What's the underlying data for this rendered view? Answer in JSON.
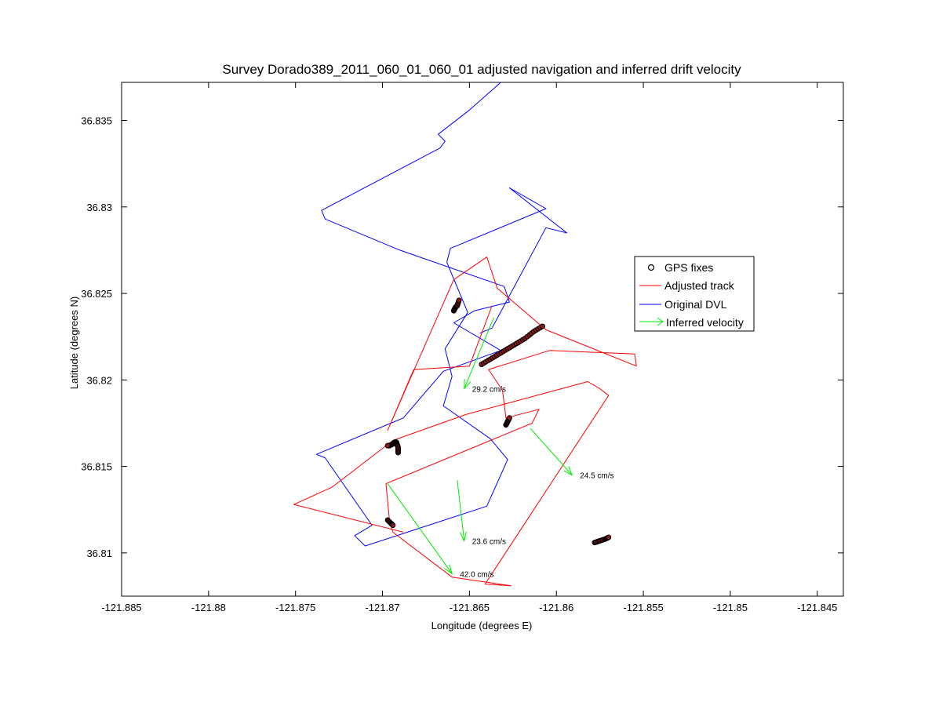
{
  "chart_data": {
    "type": "line",
    "title": "Survey Dorado389_2011_060_01_060_01 adjusted navigation and inferred drift velocity",
    "xlabel": "Longitude (degrees E)",
    "ylabel": "Latitude (degrees N)",
    "xlim": [
      -121.885,
      -121.8435
    ],
    "ylim": [
      36.8075,
      36.8372
    ],
    "xticks": [
      -121.885,
      -121.88,
      -121.875,
      -121.87,
      -121.865,
      -121.86,
      -121.855,
      -121.85,
      -121.845
    ],
    "xtick_labels": [
      "-121.885",
      "-121.88",
      "-121.875",
      "-121.87",
      "-121.865",
      "-121.86",
      "-121.855",
      "-121.85",
      "-121.845"
    ],
    "yticks": [
      36.81,
      36.815,
      36.82,
      36.825,
      36.83,
      36.835
    ],
    "ytick_labels": [
      "36.81",
      "36.815",
      "36.82",
      "36.825",
      "36.83",
      "36.835"
    ],
    "grid": false,
    "legend_position": "right",
    "colors": {
      "gps": "#000000",
      "adjusted": "#ff0000",
      "original": "#0000ff",
      "velocity": "#00ee00"
    },
    "series": [
      {
        "name": "Original DVL",
        "color": "#0000ff",
        "x": [
          -121.8633,
          -121.8632,
          -121.865,
          -121.8668,
          -121.8664,
          -121.8667,
          -121.8735,
          -121.8733,
          -121.869,
          -121.863,
          -121.8627,
          -121.8647,
          -121.8659,
          -121.8632,
          -121.8665,
          -121.8688,
          -121.8738,
          -121.8733,
          -121.8706,
          -121.8716,
          -121.871,
          -121.864,
          -121.8628,
          -121.8638,
          -121.8665,
          -121.866,
          -121.8664,
          -121.8651,
          -121.8663,
          -121.8661,
          -121.8606,
          -121.8627,
          -121.8594,
          -121.8606,
          -121.8637,
          -121.8644
        ],
        "y": [
          36.8373,
          36.8372,
          36.8356,
          36.8342,
          36.8338,
          36.8334,
          36.8298,
          36.8293,
          36.8275,
          36.8254,
          36.8245,
          36.824,
          36.8233,
          36.8217,
          36.8205,
          36.8178,
          36.8157,
          36.8155,
          36.8116,
          36.811,
          36.8104,
          36.8127,
          36.8154,
          36.8166,
          36.8185,
          36.8202,
          36.8218,
          36.8239,
          36.8268,
          36.8276,
          36.8299,
          36.8311,
          36.8285,
          36.8288,
          36.823,
          36.8227
        ]
      },
      {
        "name": "Adjusted track",
        "color": "#ff0000",
        "x": [
          -121.8637,
          -121.865,
          -121.8682,
          -121.8697,
          -121.8659,
          -121.864,
          -121.8634,
          -121.8606,
          -121.8554,
          -121.8555,
          -121.8604,
          -121.8639,
          -121.8631,
          -121.8629,
          -121.861,
          -121.8614,
          -121.8698,
          -121.8696,
          -121.8694,
          -121.866,
          -121.8626,
          -121.8641,
          -121.8613,
          -121.857,
          -121.8575,
          -121.8582,
          -121.8652,
          -121.8694,
          -121.8729,
          -121.8751,
          -121.8688
        ],
        "y": [
          36.8243,
          36.8208,
          36.8206,
          36.8171,
          36.8258,
          36.8271,
          36.8253,
          36.8229,
          36.8208,
          36.8215,
          36.8217,
          36.8206,
          36.8194,
          36.8178,
          36.8183,
          36.8175,
          36.814,
          36.8119,
          36.8112,
          36.8086,
          36.8081,
          36.8082,
          36.8125,
          36.8191,
          36.8195,
          36.8199,
          36.818,
          36.8165,
          36.8138,
          36.8128,
          36.8112
        ]
      }
    ],
    "gps_fixes": {
      "name": "GPS fixes",
      "segments": [
        {
          "x": [
            -121.8659,
            -121.8658,
            -121.8657,
            -121.8656
          ],
          "y": [
            36.824,
            36.8242,
            36.8243,
            36.8246
          ]
        },
        {
          "x": [
            -121.8643,
            -121.8638,
            -121.8633,
            -121.8628,
            -121.8623,
            -121.8618,
            -121.8613,
            -121.8608
          ],
          "y": [
            36.8209,
            36.8212,
            36.8215,
            36.8218,
            36.8221,
            36.8224,
            36.8228,
            36.8231
          ]
        },
        {
          "x": [
            -121.8629,
            -121.8628,
            -121.8627
          ],
          "y": [
            36.8174,
            36.8176,
            36.8178
          ]
        },
        {
          "x": [
            -121.8691,
            -121.8691,
            -121.8692,
            -121.8693,
            -121.8694,
            -121.8696,
            -121.8697
          ],
          "y": [
            36.8158,
            36.8161,
            36.8164,
            36.8164,
            36.8163,
            36.8162,
            36.8162
          ]
        },
        {
          "x": [
            -121.8697,
            -121.8695,
            -121.8694
          ],
          "y": [
            36.8119,
            36.8117,
            36.8116
          ]
        },
        {
          "x": [
            -121.8578,
            -121.8575,
            -121.8572,
            -121.857
          ],
          "y": [
            36.8106,
            36.8107,
            36.8108,
            36.8109
          ]
        }
      ]
    },
    "velocity": {
      "name": "Inferred velocity",
      "arrows": [
        {
          "x": -121.8636,
          "y": 36.8236,
          "dx": -0.0017,
          "dy": -0.0041,
          "label": "29.2 cm/s"
        },
        {
          "x": -121.8615,
          "y": 36.8172,
          "dx": 0.0024,
          "dy": -0.0027,
          "label": "24.5 cm/s"
        },
        {
          "x": -121.8657,
          "y": 36.8142,
          "dx": 0.0004,
          "dy": -0.0035,
          "label": "23.6 cm/s"
        },
        {
          "x": -121.8697,
          "y": 36.814,
          "dx": 0.0037,
          "dy": -0.0052,
          "label": "42.0 cm/s"
        }
      ]
    },
    "legend": [
      {
        "label": "GPS fixes",
        "kind": "marker"
      },
      {
        "label": "Adjusted track",
        "kind": "red-line"
      },
      {
        "label": "Original DVL",
        "kind": "blue-line"
      },
      {
        "label": "Inferred velocity",
        "kind": "arrow"
      }
    ]
  }
}
